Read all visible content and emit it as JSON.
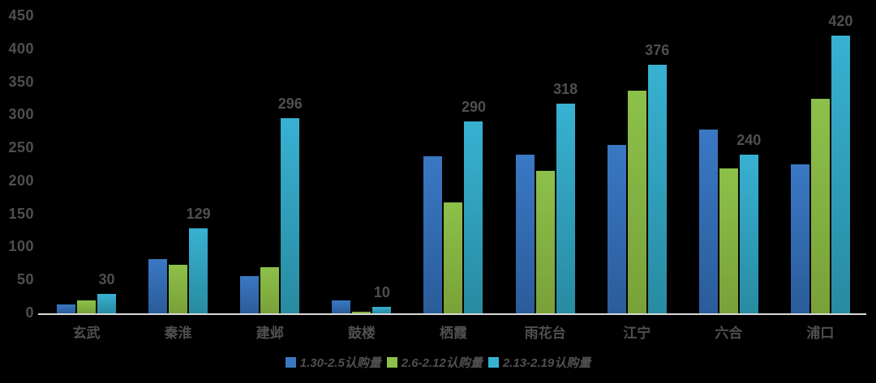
{
  "chart_data": {
    "type": "bar",
    "title": "",
    "xlabel": "",
    "ylabel": "",
    "background_color": "#000000",
    "text_color": "#4f4f4f",
    "axis_line_color": "#d9d9d9",
    "grid": false,
    "legend_position": "bottom",
    "categories": [
      "玄武",
      "秦淮",
      "建邺",
      "鼓楼",
      "栖霞",
      "雨花台",
      "江宁",
      "六合",
      "浦口"
    ],
    "series": [
      {
        "name": "1.30-2.5认购量",
        "color": "#3a78c4",
        "color_bottom": "#2b5c9a",
        "values": [
          14,
          82,
          56,
          20,
          238,
          240,
          255,
          278,
          225
        ],
        "data_labels": false
      },
      {
        "name": "2.6-2.12认购量",
        "color": "#8dc04a",
        "color_bottom": "#79a139",
        "values": [
          20,
          73,
          70,
          3,
          168,
          216,
          337,
          220,
          325
        ],
        "data_labels": false
      },
      {
        "name": "2.13-2.19认购量",
        "color": "#38b1d2",
        "color_bottom": "#288ba1",
        "values": [
          30,
          129,
          296,
          10,
          290,
          318,
          376,
          240,
          420
        ],
        "data_labels": true
      }
    ],
    "data_label_values": [
      30,
      129,
      296,
      10,
      290,
      318,
      376,
      240,
      420
    ],
    "y_axis": {
      "min": 0,
      "max": 450,
      "step": 50,
      "ticks": [
        0,
        50,
        100,
        150,
        200,
        250,
        300,
        350,
        400,
        450
      ]
    }
  }
}
